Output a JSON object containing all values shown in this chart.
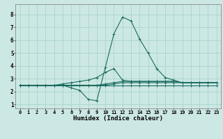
{
  "xlabel": "Humidex (Indice chaleur)",
  "background_color": "#cce8e4",
  "grid_color": "#aad4cc",
  "line_color": "#1a6b5e",
  "xlim": [
    -0.5,
    23.5
  ],
  "ylim": [
    0.7,
    8.8
  ],
  "xticks": [
    0,
    1,
    2,
    3,
    4,
    5,
    6,
    7,
    8,
    9,
    10,
    11,
    12,
    13,
    14,
    15,
    16,
    17,
    18,
    19,
    20,
    21,
    22,
    23
  ],
  "yticks": [
    1,
    2,
    3,
    4,
    5,
    6,
    7,
    8
  ],
  "curves": [
    {
      "x": [
        0,
        1,
        2,
        3,
        4,
        5,
        6,
        7,
        8,
        9,
        10,
        11,
        12,
        13,
        14,
        15,
        16,
        17,
        18,
        19,
        20,
        21,
        22,
        23
      ],
      "y": [
        2.5,
        2.5,
        2.5,
        2.5,
        2.5,
        2.5,
        2.5,
        2.5,
        2.5,
        2.5,
        2.5,
        2.5,
        2.5,
        2.5,
        2.5,
        2.5,
        2.5,
        2.5,
        2.5,
        2.5,
        2.5,
        2.5,
        2.5,
        2.5
      ]
    },
    {
      "x": [
        0,
        1,
        2,
        3,
        4,
        5,
        6,
        7,
        8,
        9,
        10,
        11,
        12,
        13,
        14,
        15,
        16,
        17,
        18,
        19,
        20,
        21,
        22,
        23
      ],
      "y": [
        2.5,
        2.5,
        2.5,
        2.5,
        2.5,
        2.5,
        2.3,
        2.1,
        1.4,
        1.3,
        3.9,
        6.5,
        7.8,
        7.5,
        6.1,
        5.0,
        3.8,
        3.1,
        2.9,
        2.7,
        2.7,
        2.7,
        2.7,
        2.7
      ]
    },
    {
      "x": [
        0,
        1,
        2,
        3,
        4,
        5,
        6,
        7,
        8,
        9,
        10,
        11,
        12,
        13,
        14,
        15,
        16,
        17,
        18,
        19,
        20,
        21,
        22,
        23
      ],
      "y": [
        2.5,
        2.5,
        2.5,
        2.5,
        2.5,
        2.6,
        2.7,
        2.8,
        2.9,
        3.1,
        3.5,
        3.8,
        2.9,
        2.8,
        2.8,
        2.8,
        2.8,
        2.8,
        2.8,
        2.7,
        2.7,
        2.7,
        2.7,
        2.7
      ]
    },
    {
      "x": [
        0,
        1,
        2,
        3,
        4,
        5,
        6,
        7,
        8,
        9,
        10,
        11,
        12,
        13,
        14,
        15,
        16,
        17,
        18,
        19,
        20,
        21,
        22,
        23
      ],
      "y": [
        2.5,
        2.5,
        2.5,
        2.5,
        2.5,
        2.5,
        2.5,
        2.5,
        2.5,
        2.5,
        2.6,
        2.7,
        2.8,
        2.8,
        2.8,
        2.8,
        2.8,
        2.8,
        2.8,
        2.7,
        2.7,
        2.7,
        2.7,
        2.7
      ]
    },
    {
      "x": [
        0,
        1,
        2,
        3,
        4,
        5,
        6,
        7,
        8,
        9,
        10,
        11,
        12,
        13,
        14,
        15,
        16,
        17,
        18,
        19,
        20,
        21,
        22,
        23
      ],
      "y": [
        2.5,
        2.5,
        2.5,
        2.5,
        2.5,
        2.5,
        2.5,
        2.5,
        2.5,
        2.5,
        2.5,
        2.6,
        2.7,
        2.7,
        2.7,
        2.7,
        2.7,
        2.7,
        2.7,
        2.7,
        2.7,
        2.7,
        2.7,
        2.7
      ]
    }
  ],
  "tick_fontsize": 5.0,
  "xlabel_fontsize": 6.5,
  "marker": "+"
}
